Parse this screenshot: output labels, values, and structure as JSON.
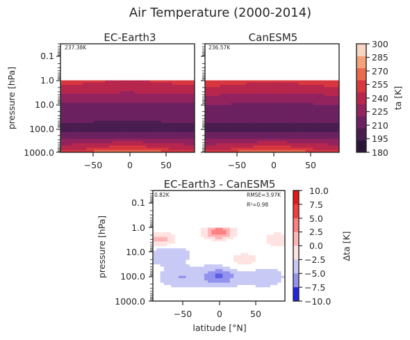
{
  "title": "Air Temperature (2000-2014)",
  "ylabel": "pressure [hPa]",
  "xlabel": "latitude [°N]",
  "chart_data": [
    {
      "type": "heatmap",
      "title": "EC-Earth3",
      "ylabel": "pressure [hPa]",
      "annotation": "237.38K",
      "x_ticks": [
        "−50",
        "0",
        "50"
      ],
      "y_ticks": [
        "0.1",
        "1.0",
        "10.0",
        "100.0",
        "1000.0"
      ],
      "xlim": [
        -90,
        90
      ],
      "ylim_hpa": [
        1000,
        0.03
      ],
      "data_top_hpa": 1.0,
      "levels": [
        {
          "p": 1.0,
          "t": 255
        },
        {
          "p": 2.5,
          "t": 245
        },
        {
          "p": 5,
          "t": 232
        },
        {
          "p": 10,
          "t": 222
        },
        {
          "p": 30,
          "t": 215
        },
        {
          "p": 60,
          "t": 210
        },
        {
          "p": 80,
          "t": 205
        },
        {
          "p": 130,
          "t": 210
        },
        {
          "p": 200,
          "t": 215
        },
        {
          "p": 300,
          "t": 232
        },
        {
          "p": 450,
          "t": 247
        },
        {
          "p": 650,
          "t": 262
        },
        {
          "p": 850,
          "t": 277
        },
        {
          "p": 1000,
          "t": 290
        }
      ]
    },
    {
      "type": "heatmap",
      "title": "CanESM5",
      "annotation": "236.57K",
      "x_ticks": [
        "−50",
        "0",
        "50"
      ],
      "xlim": [
        -90,
        90
      ],
      "ylim_hpa": [
        1000,
        0.03
      ],
      "data_top_hpa": 1.0,
      "levels": [
        {
          "p": 1.0,
          "t": 257
        },
        {
          "p": 2.5,
          "t": 247
        },
        {
          "p": 5,
          "t": 233
        },
        {
          "p": 10,
          "t": 223
        },
        {
          "p": 30,
          "t": 216
        },
        {
          "p": 60,
          "t": 211
        },
        {
          "p": 80,
          "t": 207
        },
        {
          "p": 130,
          "t": 210
        },
        {
          "p": 200,
          "t": 215
        },
        {
          "p": 300,
          "t": 232
        },
        {
          "p": 450,
          "t": 247
        },
        {
          "p": 650,
          "t": 262
        },
        {
          "p": 850,
          "t": 277
        },
        {
          "p": 1000,
          "t": 290
        }
      ]
    },
    {
      "type": "heatmap",
      "title": "EC-Earth3 - CanESM5",
      "xlabel": "latitude [°N]",
      "ylabel": "pressure [hPa]",
      "annotation_left": "0.82K",
      "annotation_rmse": "RMSE=3.97K",
      "annotation_r2": "R²=0.98",
      "x_ticks": [
        "−50",
        "0",
        "50"
      ],
      "y_ticks": [
        "0.1",
        "1.0",
        "10.0",
        "100.0",
        "1000.0"
      ],
      "xlim": [
        -90,
        90
      ],
      "ylim_hpa": [
        1000,
        0.03
      ],
      "data_top_hpa": 1.0,
      "features": [
        {
          "lat": 0,
          "p": 1.5,
          "dt": 8.5
        },
        {
          "lat": -80,
          "p": 3,
          "dt": 5.5
        },
        {
          "lat": 80,
          "p": 3,
          "dt": 4
        },
        {
          "lat": -70,
          "p": 12,
          "dt": -3
        },
        {
          "lat": 35,
          "p": 20,
          "dt": 3.5
        },
        {
          "lat": 0,
          "p": 100,
          "dt": -6
        },
        {
          "lat": -50,
          "p": 100,
          "dt": -3
        },
        {
          "lat": 60,
          "p": 100,
          "dt": -2
        },
        {
          "lat": 0,
          "p": 800,
          "dt": 2
        }
      ]
    }
  ],
  "colorbars": [
    {
      "label": "ta [K]",
      "ticks": [
        "180",
        "195",
        "210",
        "225",
        "240",
        "255",
        "270",
        "285",
        "300"
      ],
      "min": 180,
      "max": 300,
      "step": 15,
      "colors": [
        "#2b1639",
        "#491d4f",
        "#6c2160",
        "#92235f",
        "#b7264d",
        "#d8373f",
        "#ec6a4c",
        "#f5a27b",
        "#f9d5c4"
      ]
    },
    {
      "label": "Δta [K]",
      "ticks": [
        "10.0",
        "7.5",
        "5.0",
        "2.5",
        "0.0",
        "−2.5",
        "−5.0",
        "−7.5",
        "−10.0"
      ],
      "min": -10,
      "max": 10,
      "step": 2.5,
      "colors": [
        "#2323e6",
        "#5d5dea",
        "#9393ef",
        "#c9c9f5",
        "#ffffff",
        "#ffe3e3",
        "#ffb5b5",
        "#ff8080",
        "#f83b3b",
        "#e81717"
      ]
    }
  ]
}
